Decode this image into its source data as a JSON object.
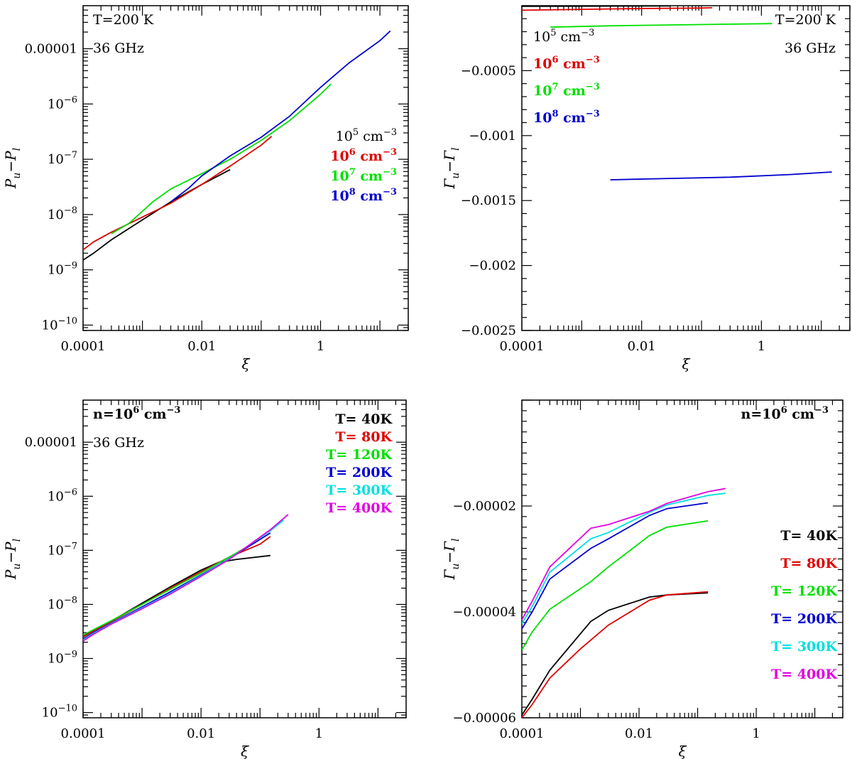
{
  "chart_data": [
    {
      "id": "p1",
      "type": "line",
      "xscale": "log",
      "yscale": "log",
      "xlim": [
        0.0001,
        30
      ],
      "ylim": [
        8e-11,
        6e-05
      ],
      "xticks": [
        {
          "v": 0.0001,
          "label": "0.0001"
        },
        {
          "v": 0.01,
          "label": "0.01"
        },
        {
          "v": 1,
          "label": "1"
        }
      ],
      "yticks": [
        {
          "v": 1e-10,
          "label": "10",
          "sup": "−10"
        },
        {
          "v": 1e-09,
          "label": "10",
          "sup": "−9"
        },
        {
          "v": 1e-08,
          "label": "10",
          "sup": "−8"
        },
        {
          "v": 1e-07,
          "label": "10",
          "sup": "−7"
        },
        {
          "v": 1e-06,
          "label": "10",
          "sup": "−6"
        },
        {
          "v": 1e-05,
          "label": "0.00001",
          "sup": ""
        }
      ],
      "xlabel": "ξ",
      "ylabel": "P",
      "ylabel_sub1": "u",
      "ylabel_mid": "−P",
      "ylabel_sub2": "l",
      "annotations": [
        "T=200 K",
        "36 GHz"
      ],
      "annotation_pos": "top-left",
      "legend_pos": "right",
      "legend": [
        {
          "base": "10",
          "sup": "5",
          "unit": " cm",
          "usup": "−3",
          "color": "#000000"
        },
        {
          "base": "10",
          "sup": "6",
          "unit": " cm",
          "usup": "−3",
          "color": "#e00000"
        },
        {
          "base": "10",
          "sup": "7",
          "unit": " cm",
          "usup": "−3",
          "color": "#00e000"
        },
        {
          "base": "10",
          "sup": "8",
          "unit": " cm",
          "usup": "−3",
          "color": "#0000d0"
        }
      ],
      "series": [
        {
          "color": "#000000",
          "x": [
            0.0001,
            0.00015,
            0.0003,
            0.001,
            0.003,
            0.01,
            0.03
          ],
          "y": [
            1.5e-09,
            2e-09,
            3.5e-09,
            8e-09,
            1.7e-08,
            3.5e-08,
            6.5e-08
          ]
        },
        {
          "color": "#e00000",
          "x": [
            0.0001,
            0.00015,
            0.0003,
            0.001,
            0.003,
            0.01,
            0.03,
            0.1,
            0.15
          ],
          "y": [
            2.3e-09,
            3.2e-09,
            4.8e-09,
            9e-09,
            1.6e-08,
            3.5e-08,
            7.5e-08,
            1.8e-07,
            2.6e-07
          ]
        },
        {
          "color": "#00e000",
          "x": [
            0.0003,
            0.0006,
            0.0015,
            0.003,
            0.01,
            0.03,
            0.1,
            0.3,
            1.0,
            1.5
          ],
          "y": [
            4.5e-09,
            7e-09,
            1.7e-08,
            2.9e-08,
            5.5e-08,
            1e-07,
            2.2e-07,
            5e-07,
            1.5e-06,
            2.3e-06
          ]
        },
        {
          "color": "#0000d0",
          "x": [
            0.003,
            0.006,
            0.01,
            0.03,
            0.1,
            0.3,
            1.0,
            3.0,
            10.0,
            15.0
          ],
          "y": [
            1.7e-08,
            3e-08,
            5e-08,
            1.15e-07,
            2.5e-07,
            6e-07,
            2e-06,
            5.5e-06,
            1.4e-05,
            2.1e-05
          ]
        }
      ]
    },
    {
      "id": "p2",
      "type": "line",
      "xscale": "log",
      "yscale": "linear",
      "xlim": [
        0.0001,
        30
      ],
      "ylim": [
        -0.0025,
        0
      ],
      "xticks": [
        {
          "v": 0.0001,
          "label": "0.0001"
        },
        {
          "v": 0.01,
          "label": "0.01"
        },
        {
          "v": 1,
          "label": "1"
        }
      ],
      "yticks": [
        {
          "v": -0.0025,
          "label": "−0.0025"
        },
        {
          "v": -0.002,
          "label": "−0.002"
        },
        {
          "v": -0.0015,
          "label": "−0.0015"
        },
        {
          "v": -0.001,
          "label": "−0.001"
        },
        {
          "v": -0.0005,
          "label": "−0.0005"
        }
      ],
      "yminor": 0.0001,
      "xlabel": "ξ",
      "ylabel": "Γ",
      "ylabel_sub1": "u",
      "ylabel_mid": "−Γ",
      "ylabel_sub2": "l",
      "annotations": [
        "T=200 K",
        "36 GHz"
      ],
      "annotation_pos": "top-right",
      "legend_pos": "top-left",
      "legend": [
        {
          "base": "10",
          "sup": "5",
          "unit": " cm",
          "usup": "−3",
          "color": "#000000"
        },
        {
          "base": "10",
          "sup": "6",
          "unit": " cm",
          "usup": "−3",
          "color": "#e00000"
        },
        {
          "base": "10",
          "sup": "7",
          "unit": " cm",
          "usup": "−3",
          "color": "#00e000"
        },
        {
          "base": "10",
          "sup": "8",
          "unit": " cm",
          "usup": "−3",
          "color": "#0000d0"
        }
      ],
      "series": [
        {
          "color": "#000000",
          "x": [
            0.0001,
            0.001,
            0.01,
            0.03
          ],
          "y": [
            -5e-06,
            -4e-06,
            -3e-06,
            -2e-06
          ]
        },
        {
          "color": "#e00000",
          "x": [
            0.0001,
            0.001,
            0.01,
            0.1,
            0.15
          ],
          "y": [
            -3.5e-05,
            -2.8e-05,
            -2.2e-05,
            -1.8e-05,
            -1.6e-05
          ]
        },
        {
          "color": "#00e000",
          "x": [
            0.0003,
            0.003,
            0.03,
            0.3,
            1.5
          ],
          "y": [
            -0.000165,
            -0.000155,
            -0.000148,
            -0.000142,
            -0.000138
          ]
        },
        {
          "color": "#0000d0",
          "x": [
            0.003,
            0.03,
            0.3,
            3.0,
            15.0
          ],
          "y": [
            -0.00134,
            -0.00133,
            -0.00132,
            -0.0013,
            -0.00128
          ]
        }
      ]
    },
    {
      "id": "p3",
      "type": "line",
      "xscale": "log",
      "yscale": "log",
      "xlim": [
        0.0001,
        30
      ],
      "ylim": [
        8e-11,
        6e-05
      ],
      "xticks": [
        {
          "v": 0.0001,
          "label": "0.0001"
        },
        {
          "v": 0.01,
          "label": "0.01"
        },
        {
          "v": 1,
          "label": "1"
        }
      ],
      "yticks": [
        {
          "v": 1e-10,
          "label": "10",
          "sup": "−10"
        },
        {
          "v": 1e-09,
          "label": "10",
          "sup": "−9"
        },
        {
          "v": 1e-08,
          "label": "10",
          "sup": "−8"
        },
        {
          "v": 1e-07,
          "label": "10",
          "sup": "−7"
        },
        {
          "v": 1e-06,
          "label": "10",
          "sup": "−6"
        },
        {
          "v": 1e-05,
          "label": "0.00001",
          "sup": ""
        }
      ],
      "xlabel": "ξ",
      "ylabel": "P",
      "ylabel_sub1": "u",
      "ylabel_mid": "−P",
      "ylabel_sub2": "l",
      "annotation_pos": "top-left",
      "annotations_rich": [
        {
          "base": "n=10",
          "sup": "6",
          "rest": " cm",
          "rsup": "−3"
        }
      ],
      "annotations": [
        "36 GHz"
      ],
      "legend_pos": "top-right",
      "legend": [
        {
          "base": "T= 40K",
          "color": "#000000"
        },
        {
          "base": "T= 80K",
          "color": "#e00000"
        },
        {
          "base": "T= 120K",
          "color": "#00e000"
        },
        {
          "base": "T= 200K",
          "color": "#0000d0"
        },
        {
          "base": "T= 300K",
          "color": "#00e0e0"
        },
        {
          "base": "T= 400K",
          "color": "#e000e0"
        }
      ],
      "series": [
        {
          "color": "#000000",
          "x": [
            0.0001,
            0.00015,
            0.0003,
            0.001,
            0.003,
            0.01,
            0.02,
            0.04,
            0.15
          ],
          "y": [
            2.6e-09,
            3.3e-09,
            4.9e-09,
            1.05e-08,
            2.1e-08,
            4.3e-08,
            6e-08,
            6.8e-08,
            8e-08
          ]
        },
        {
          "color": "#e00000",
          "x": [
            0.0001,
            0.00015,
            0.0003,
            0.001,
            0.003,
            0.01,
            0.03,
            0.1,
            0.15
          ],
          "y": [
            2.5e-09,
            3.2e-09,
            4.8e-09,
            1e-08,
            2e-08,
            4e-08,
            7.5e-08,
            1.3e-07,
            1.8e-07
          ]
        },
        {
          "color": "#00e000",
          "x": [
            0.0001,
            0.00015,
            0.0003,
            0.001,
            0.003,
            0.01,
            0.03,
            0.1
          ],
          "y": [
            2.7e-09,
            3.4e-09,
            5e-09,
            1e-08,
            1.9e-08,
            3.8e-08,
            7.5e-08,
            1.6e-07
          ]
        },
        {
          "color": "#0000d0",
          "x": [
            0.0001,
            0.00015,
            0.0003,
            0.001,
            0.003,
            0.01,
            0.03,
            0.15
          ],
          "y": [
            2.3e-09,
            3e-09,
            4.5e-09,
            9e-09,
            1.7e-08,
            3.5e-08,
            7e-08,
            2.1e-07
          ]
        },
        {
          "color": "#00e0e0",
          "x": [
            0.0001,
            0.00015,
            0.0003,
            0.001,
            0.003,
            0.01,
            0.03,
            0.15,
            0.25
          ],
          "y": [
            2.2e-09,
            2.9e-09,
            4.4e-09,
            8.6e-09,
            1.6e-08,
            3.4e-08,
            7e-08,
            2.3e-07,
            3.6e-07
          ]
        },
        {
          "color": "#e000e0",
          "x": [
            0.0001,
            0.00015,
            0.0003,
            0.001,
            0.003,
            0.01,
            0.03,
            0.15,
            0.3
          ],
          "y": [
            2.1e-09,
            2.8e-09,
            4.3e-09,
            8.3e-09,
            1.55e-08,
            3.3e-08,
            6.8e-08,
            2.4e-07,
            4.6e-07
          ]
        }
      ]
    },
    {
      "id": "p4",
      "type": "line",
      "xscale": "log",
      "yscale": "linear",
      "xlim": [
        0.0001,
        30
      ],
      "ylim": [
        -6e-05,
        0
      ],
      "xticks": [
        {
          "v": 0.0001,
          "label": "0.0001"
        },
        {
          "v": 0.01,
          "label": "0.01"
        },
        {
          "v": 1,
          "label": "1"
        }
      ],
      "yticks": [
        {
          "v": -6e-05,
          "label": "−0.00006"
        },
        {
          "v": -4e-05,
          "label": "−0.00004"
        },
        {
          "v": -2e-05,
          "label": "−0.00002"
        }
      ],
      "yminor": 2e-06,
      "xlabel": "ξ",
      "ylabel": "Γ",
      "ylabel_sub1": "u",
      "ylabel_mid": "−Γ",
      "ylabel_sub2": "l",
      "annotation_pos": "top-right",
      "annotations_rich": [
        {
          "base": "n=10",
          "sup": "6",
          "rest": " cm",
          "rsup": "−3"
        }
      ],
      "annotations": [],
      "legend_pos": "right",
      "legend": [
        {
          "base": "T= 40K",
          "color": "#000000"
        },
        {
          "base": "T= 80K",
          "color": "#e00000"
        },
        {
          "base": "T= 120K",
          "color": "#00e000"
        },
        {
          "base": "T= 200K",
          "color": "#0000d0"
        },
        {
          "base": "T= 300K",
          "color": "#00e0e0"
        },
        {
          "base": "T= 400K",
          "color": "#e000e0"
        }
      ],
      "series": [
        {
          "color": "#000000",
          "x": [
            0.0001,
            0.00015,
            0.0003,
            0.0015,
            0.003,
            0.015,
            0.03,
            0.15
          ],
          "y": [
            -5.95e-05,
            -5.65e-05,
            -5.1e-05,
            -4.18e-05,
            -3.97e-05,
            -3.72e-05,
            -3.68e-05,
            -3.64e-05
          ]
        },
        {
          "color": "#e00000",
          "x": [
            0.0001,
            0.00015,
            0.0003,
            0.001,
            0.003,
            0.015,
            0.03,
            0.15
          ],
          "y": [
            -6e-05,
            -5.75e-05,
            -5.25e-05,
            -4.7e-05,
            -4.25e-05,
            -3.78e-05,
            -3.68e-05,
            -3.62e-05
          ]
        },
        {
          "color": "#00e000",
          "x": [
            0.0001,
            0.00015,
            0.0003,
            0.0015,
            0.003,
            0.015,
            0.03,
            0.15
          ],
          "y": [
            -4.72e-05,
            -4.38e-05,
            -3.95e-05,
            -3.43e-05,
            -3.15e-05,
            -2.56e-05,
            -2.4e-05,
            -2.28e-05
          ]
        },
        {
          "color": "#0000d0",
          "x": [
            0.0001,
            0.00015,
            0.0003,
            0.0015,
            0.003,
            0.015,
            0.03,
            0.15
          ],
          "y": [
            -4.32e-05,
            -4e-05,
            -3.38e-05,
            -2.8e-05,
            -2.62e-05,
            -2.18e-05,
            -2.05e-05,
            -1.94e-05
          ]
        },
        {
          "color": "#00e0e0",
          "x": [
            0.0001,
            0.00015,
            0.0003,
            0.0015,
            0.003,
            0.015,
            0.03,
            0.15,
            0.3
          ],
          "y": [
            -4.22e-05,
            -3.9e-05,
            -3.25e-05,
            -2.62e-05,
            -2.5e-05,
            -2.12e-05,
            -1.98e-05,
            -1.8e-05,
            -1.76e-05
          ]
        },
        {
          "color": "#e000e0",
          "x": [
            0.0001,
            0.00015,
            0.0003,
            0.0015,
            0.003,
            0.015,
            0.03,
            0.15,
            0.3
          ],
          "y": [
            -4.15e-05,
            -3.8e-05,
            -3.15e-05,
            -2.42e-05,
            -2.35e-05,
            -2.1e-05,
            -1.95e-05,
            -1.73e-05,
            -1.67e-05
          ]
        }
      ]
    }
  ]
}
